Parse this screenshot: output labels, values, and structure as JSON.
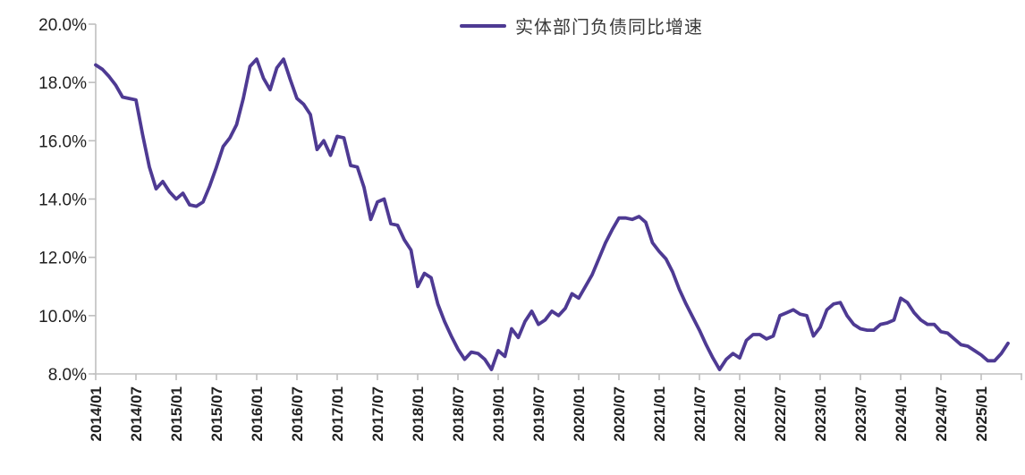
{
  "legend": {
    "label": "实体部门负债同比增速"
  },
  "colors": {
    "line": "#4E3A93",
    "axis": "#bfbfbf",
    "tick_label": "#1f1f1f",
    "background": "#ffffff"
  },
  "chart_data": {
    "type": "line",
    "title": "",
    "xlabel": "",
    "ylabel": "",
    "grid": false,
    "legend_position": "top-center",
    "ylim": [
      8,
      20
    ],
    "y_tick_step_pct": 2,
    "y_tick_labels": [
      "20.0%",
      "18.0%",
      "16.0%",
      "14.0%",
      "12.0%",
      "10.0%",
      "8.0%"
    ],
    "x_tick_labels": [
      "2014/01",
      "2014/07",
      "2015/01",
      "2015/07",
      "2016/01",
      "2016/07",
      "2017/01",
      "2017/07",
      "2018/01",
      "2018/07",
      "2019/01",
      "2019/07",
      "2020/01",
      "2020/07",
      "2021/01",
      "2021/07",
      "2022/01",
      "2022/07",
      "2023/01",
      "2023/07",
      "2024/01",
      "2024/07",
      "2025/01"
    ],
    "x_monthly_range": {
      "start": "2014/01",
      "end": "2025/05"
    },
    "series": [
      {
        "name": "实体部门负债同比增速",
        "unit": "%",
        "values": [
          18.6,
          18.45,
          18.2,
          17.9,
          17.5,
          17.45,
          17.4,
          16.2,
          15.1,
          14.35,
          14.6,
          14.25,
          14.0,
          14.2,
          13.8,
          13.75,
          13.9,
          14.45,
          15.1,
          15.8,
          16.1,
          16.55,
          17.45,
          18.55,
          18.8,
          18.15,
          17.75,
          18.5,
          18.8,
          18.1,
          17.45,
          17.25,
          16.9,
          15.7,
          16.0,
          15.5,
          16.15,
          16.1,
          15.15,
          15.1,
          14.4,
          13.3,
          13.9,
          14.0,
          13.15,
          13.1,
          12.6,
          12.25,
          11.0,
          11.45,
          11.3,
          10.4,
          9.8,
          9.3,
          8.85,
          8.5,
          8.75,
          8.7,
          8.5,
          8.15,
          8.8,
          8.6,
          9.55,
          9.25,
          9.8,
          10.15,
          9.7,
          9.85,
          10.15,
          10.0,
          10.25,
          10.75,
          10.6,
          11.0,
          11.4,
          11.95,
          12.5,
          12.95,
          13.35,
          13.35,
          13.3,
          13.4,
          13.2,
          12.5,
          12.2,
          11.95,
          11.5,
          10.9,
          10.4,
          9.95,
          9.5,
          9.0,
          8.55,
          8.15,
          8.5,
          8.7,
          8.55,
          9.15,
          9.35,
          9.35,
          9.2,
          9.3,
          10.0,
          10.1,
          10.2,
          10.05,
          10.0,
          9.3,
          9.6,
          10.2,
          10.4,
          10.45,
          10.0,
          9.7,
          9.55,
          9.5,
          9.5,
          9.7,
          9.75,
          9.85,
          10.6,
          10.45,
          10.1,
          9.85,
          9.7,
          9.7,
          9.45,
          9.4,
          9.2,
          9.0,
          8.95,
          8.8,
          8.65,
          8.45,
          8.45,
          8.7,
          9.05
        ]
      }
    ]
  }
}
